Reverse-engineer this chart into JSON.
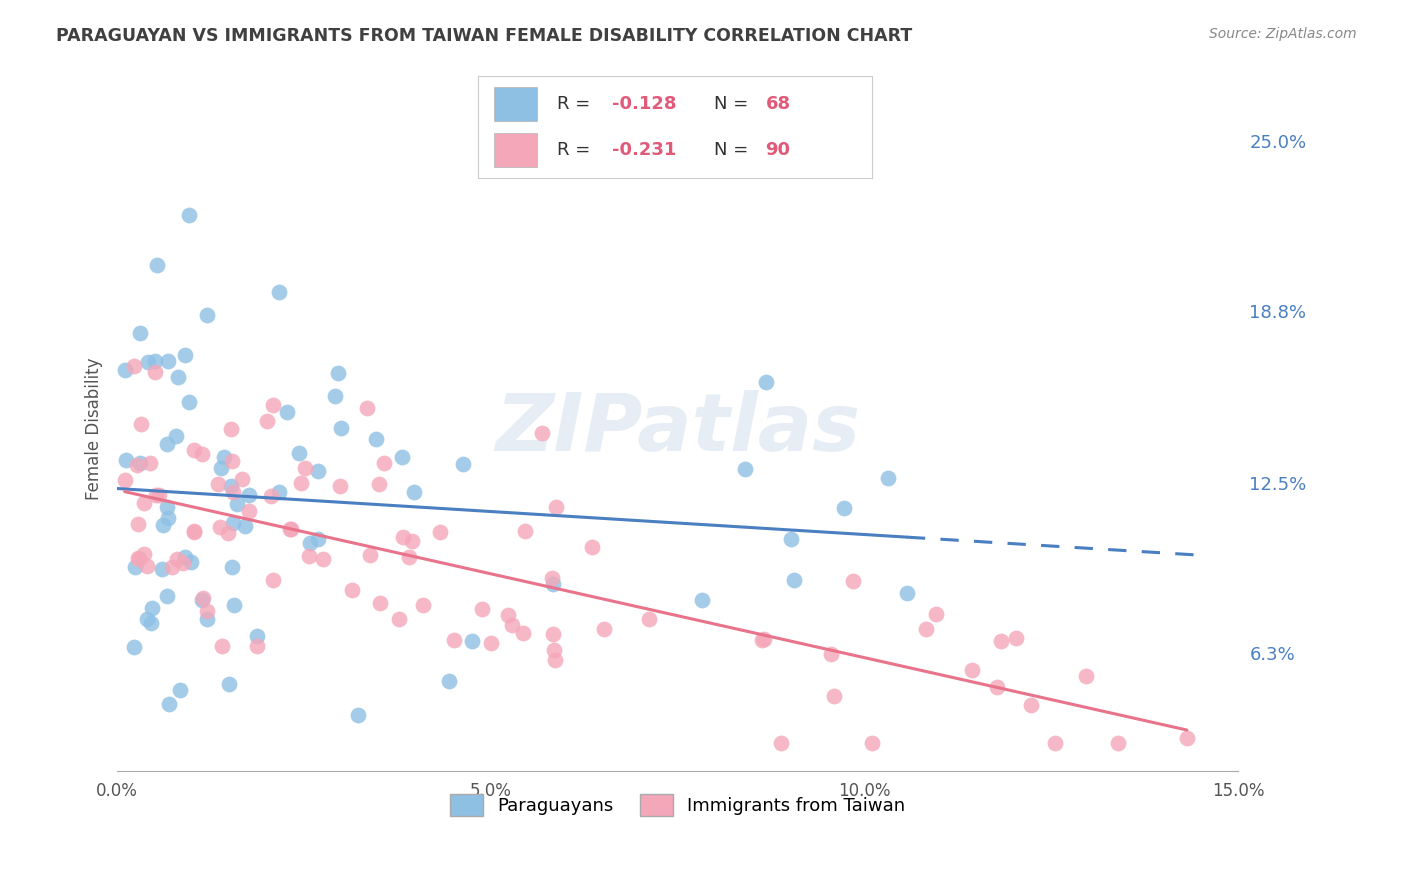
{
  "title": "PARAGUAYAN VS IMMIGRANTS FROM TAIWAN FEMALE DISABILITY CORRELATION CHART",
  "source": "Source: ZipAtlas.com",
  "ylabel": "Female Disability",
  "xlim": [
    0.0,
    0.15
  ],
  "ylim": [
    0.02,
    0.27
  ],
  "yticks": [
    0.063,
    0.125,
    0.188,
    0.25
  ],
  "ytick_labels": [
    "6.3%",
    "12.5%",
    "18.8%",
    "25.0%"
  ],
  "xticks": [
    0.0,
    0.05,
    0.1,
    0.15
  ],
  "xtick_labels": [
    "0.0%",
    "5.0%",
    "10.0%",
    "15.0%"
  ],
  "r1": "-0.128",
  "n1": "68",
  "r2": "-0.231",
  "n2": "90",
  "legend_label1": "Paraguayans",
  "legend_label2": "Immigrants from Taiwan",
  "color_blue": "#8ec0e4",
  "color_pink": "#f4a7b9",
  "trend_blue": "#4a7fc1",
  "trend_pink": "#e8738a",
  "background": "#ffffff",
  "grid_color": "#cccccc",
  "title_color": "#404040",
  "source_color": "#888888",
  "axis_label_color": "#4a7fc1",
  "watermark": "ZIPatlas",
  "seed_par": 123,
  "seed_tai": 456
}
